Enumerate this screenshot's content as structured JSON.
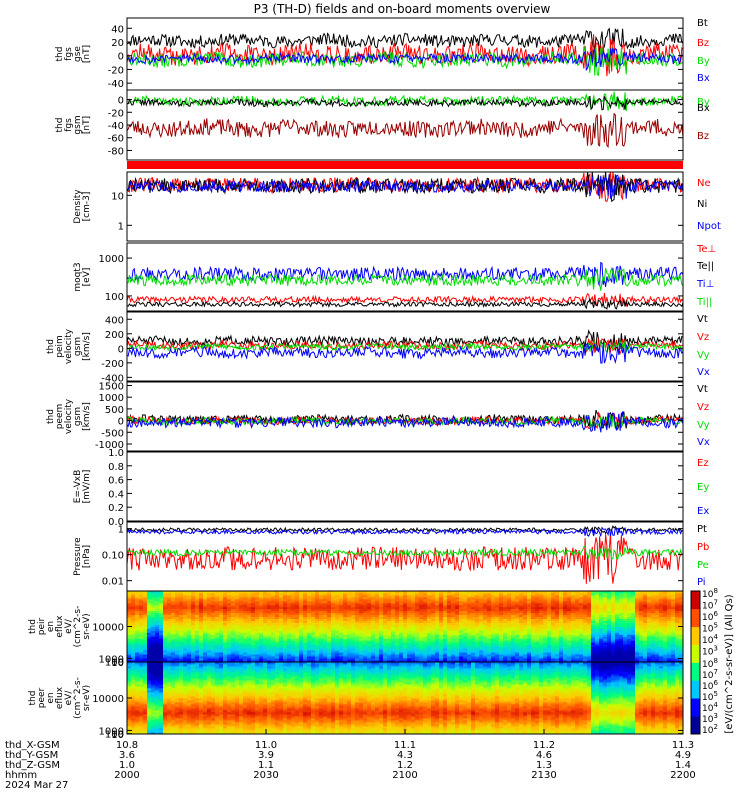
{
  "title": "P3 (TH-D) fields and on-board moments overview",
  "colors": {
    "black": "#000000",
    "red": "#ff0000",
    "darkred": "#990000",
    "green": "#00dd00",
    "blue": "#0000ff",
    "navy": "#0000aa",
    "lightgreen": "#66ff33"
  },
  "chart_data": [
    {
      "type": "line",
      "id": "fgs_gse",
      "ylabel_lines": [
        "thd",
        "fgs",
        "gse",
        "[nT]"
      ],
      "ylim": [
        -50,
        55
      ],
      "yticks": [
        {
          "v": 40,
          "label": "40"
        },
        {
          "v": 20,
          "label": "20"
        },
        {
          "v": 0,
          "label": "0"
        },
        {
          "v": -20,
          "label": "-20"
        },
        {
          "v": -40,
          "label": "-40"
        }
      ],
      "series": [
        {
          "name": "Bt",
          "color": "black",
          "base": 22,
          "amp": 9,
          "seed": 11
        },
        {
          "name": "Bz",
          "color": "red",
          "base": 2,
          "amp": 14,
          "seed": 12
        },
        {
          "name": "By",
          "color": "green",
          "base": -6,
          "amp": 10,
          "seed": 13
        },
        {
          "name": "Bx",
          "color": "blue",
          "base": -4,
          "amp": 7,
          "seed": 14
        }
      ]
    },
    {
      "type": "line",
      "id": "fgs_gsm",
      "ylabel_lines": [
        "thd",
        "fgs",
        "gsm",
        "[nT]"
      ],
      "ylim": [
        -95,
        15
      ],
      "yticks": [
        {
          "v": 0,
          "label": "0"
        },
        {
          "v": -20,
          "label": "-20"
        },
        {
          "v": -40,
          "label": "-40"
        },
        {
          "v": -60,
          "label": "-60"
        },
        {
          "v": -80,
          "label": "-80"
        }
      ],
      "series": [
        {
          "name": "By",
          "color": "green",
          "base": -2,
          "amp": 7,
          "seed": 21
        },
        {
          "name": "Bx",
          "color": "black",
          "base": -5,
          "amp": 5,
          "seed": 22
        },
        {
          "name": "Bz",
          "color": "darkred",
          "base": -45,
          "amp": 13,
          "seed": 23
        }
      ]
    },
    {
      "type": "bar",
      "id": "mode_bar",
      "label_lines": [],
      "values": [
        1
      ]
    },
    {
      "type": "line",
      "id": "density",
      "scale": "log",
      "ylabel_lines": [
        "Density",
        "[cm-3]"
      ],
      "ylim": [
        0.3,
        60
      ],
      "yticks": [
        {
          "v": 10,
          "label": "10"
        },
        {
          "v": 1,
          "label": "1"
        }
      ],
      "series": [
        {
          "name": "Ne",
          "color": "red",
          "base": 22,
          "amp": 0.25,
          "seed": 31
        },
        {
          "name": "Ni",
          "color": "black",
          "base": 21,
          "amp": 0.25,
          "seed": 32
        },
        {
          "name": "Npot",
          "color": "blue",
          "base": 20,
          "amp": 0.2,
          "seed": 33
        }
      ]
    },
    {
      "type": "line",
      "id": "temperature",
      "scale": "log",
      "ylabel_lines": [
        "moqt3",
        "[eV]"
      ],
      "ylim": [
        40,
        2500
      ],
      "yticks": [
        {
          "v": 1000,
          "label": "1000"
        },
        {
          "v": 100,
          "label": "100"
        }
      ],
      "series": [
        {
          "name": "Te⊥",
          "color": "red",
          "base": 80,
          "amp": 0.08,
          "seed": 41
        },
        {
          "name": "Te||",
          "color": "black",
          "base": 60,
          "amp": 0.06,
          "seed": 42
        },
        {
          "name": "Ti⊥",
          "color": "blue",
          "base": 380,
          "amp": 0.18,
          "seed": 43
        },
        {
          "name": "Ti||",
          "color": "green",
          "base": 260,
          "amp": 0.15,
          "seed": 44
        }
      ]
    },
    {
      "type": "line",
      "id": "peim_velocity",
      "ylabel_lines": [
        "thd",
        "peim",
        "velocity",
        "gsm",
        "[km/s]"
      ],
      "ylim": [
        -450,
        500
      ],
      "yticks": [
        {
          "v": 400,
          "label": "400"
        },
        {
          "v": 200,
          "label": "200"
        },
        {
          "v": 0,
          "label": "0"
        },
        {
          "v": -200,
          "label": "-200"
        },
        {
          "v": -400,
          "label": "-400"
        }
      ],
      "series": [
        {
          "name": "Vt",
          "color": "black",
          "base": 100,
          "amp": 60,
          "seed": 51
        },
        {
          "name": "Vz",
          "color": "red",
          "base": 40,
          "amp": 50,
          "seed": 52
        },
        {
          "name": "Vy",
          "color": "green",
          "base": 20,
          "amp": 40,
          "seed": 53
        },
        {
          "name": "Vx",
          "color": "blue",
          "base": -60,
          "amp": 70,
          "seed": 54
        }
      ]
    },
    {
      "type": "line",
      "id": "peem_velocity",
      "ylabel_lines": [
        "thd",
        "peem",
        "velocity",
        "gsm",
        "[km/s]"
      ],
      "ylim": [
        -1300,
        1650
      ],
      "yticks": [
        {
          "v": 1500,
          "label": "1500"
        },
        {
          "v": 1000,
          "label": "1000"
        },
        {
          "v": 500,
          "label": "500"
        },
        {
          "v": 0,
          "label": "0"
        },
        {
          "v": -500,
          "label": "-500"
        },
        {
          "v": -1000,
          "label": "-1000"
        }
      ],
      "series": [
        {
          "name": "Vt",
          "color": "black",
          "base": 50,
          "amp": 180,
          "seed": 61
        },
        {
          "name": "Vz",
          "color": "red",
          "base": 0,
          "amp": 160,
          "seed": 62
        },
        {
          "name": "Vy",
          "color": "green",
          "base": -20,
          "amp": 140,
          "seed": 63
        },
        {
          "name": "Vx",
          "color": "blue",
          "base": -80,
          "amp": 200,
          "seed": 64
        }
      ]
    },
    {
      "type": "line",
      "id": "efield",
      "ylabel_lines": [
        "E=-VxB",
        "[mV/m]"
      ],
      "ylim": [
        0,
        1
      ],
      "yticks": [
        {
          "v": 1.0,
          "label": "1.0"
        },
        {
          "v": 0.8,
          "label": "0.8"
        },
        {
          "v": 0.6,
          "label": "0.6"
        },
        {
          "v": 0.4,
          "label": "0.4"
        },
        {
          "v": 0.2,
          "label": "0.2"
        },
        {
          "v": 0.0,
          "label": "0.0"
        }
      ],
      "series": [
        {
          "name": "Ez",
          "color": "red"
        },
        {
          "name": "Ey",
          "color": "green"
        },
        {
          "name": "Ex",
          "color": "blue"
        }
      ]
    },
    {
      "type": "line",
      "id": "pressure",
      "scale": "log",
      "ylabel_lines": [
        "Pressure",
        "[nPa]"
      ],
      "ylim": [
        0.004,
        1.8
      ],
      "yticks": [
        {
          "v": 1,
          "label": "1"
        },
        {
          "v": 0.1,
          "label": "0.10"
        },
        {
          "v": 0.01,
          "label": "0.01"
        }
      ],
      "series": [
        {
          "name": "Pt",
          "color": "black",
          "base": 0.9,
          "amp": 0.07,
          "seed": 81
        },
        {
          "name": "Pb",
          "color": "red",
          "base": 0.07,
          "amp": 0.45,
          "seed": 82
        },
        {
          "name": "Pe",
          "color": "green",
          "base": 0.12,
          "amp": 0.12,
          "seed": 83
        },
        {
          "name": "Pi",
          "color": "blue",
          "base": 0.75,
          "amp": 0.08,
          "seed": 84
        }
      ]
    },
    {
      "type": "heatmap",
      "id": "peir_spectrogram",
      "ylabel_lines": [
        "thd",
        "peir",
        "en",
        "eflux",
        "eV/",
        "(cm^2-s-",
        "sr-eV)"
      ],
      "ylim": [
        5,
        20000
      ],
      "yticks": [
        {
          "v": 10000,
          "label": "10000"
        },
        {
          "v": 1000,
          "label": "1000"
        },
        {
          "v": 100,
          "label": "100"
        },
        {
          "v": 10,
          "label": "10"
        }
      ],
      "peak_energy": 3000
    },
    {
      "type": "heatmap",
      "id": "peer_spectrogram",
      "ylabel_lines": [
        "thd",
        "peer",
        "en",
        "eflux",
        "eV/",
        "(cm^2-s-",
        "sr-eV)"
      ],
      "ylim": [
        5,
        20000
      ],
      "yticks": [
        {
          "v": 10000,
          "label": "10000"
        },
        {
          "v": 1000,
          "label": "1000"
        },
        {
          "v": 100,
          "label": "100"
        },
        {
          "v": 10,
          "label": "10"
        }
      ],
      "peak_energy": 60
    }
  ],
  "colorbar": {
    "label": "[eV/(cm^2-s-sr-eV)] (All Qs)",
    "ticks": [
      "10^8",
      "10^7",
      "10^6",
      "10^5",
      "10^4",
      "10^3"
    ],
    "ticks2": [
      "10^8",
      "10^7",
      "10^6",
      "10^5",
      "10^4",
      "10^3",
      "10^2"
    ]
  },
  "x_axis": {
    "rows": [
      {
        "label": "thd_X-GSM",
        "values": [
          "10.8",
          "11.0",
          "11.1",
          "11.2",
          "11.3"
        ]
      },
      {
        "label": "thd_Y-GSM",
        "values": [
          "3.6",
          "3.9",
          "4.3",
          "4.6",
          "4.9"
        ]
      },
      {
        "label": "thd_Z-GSM",
        "values": [
          "1.0",
          "1.1",
          "1.2",
          "1.3",
          "1.4"
        ]
      },
      {
        "label": "hhmm",
        "values": [
          "2000",
          "2030",
          "2100",
          "2130",
          "2200"
        ]
      }
    ],
    "date": "2024 Mar 27",
    "time_ticks": [
      "2000",
      "2030",
      "2100",
      "2130",
      "2200"
    ]
  }
}
